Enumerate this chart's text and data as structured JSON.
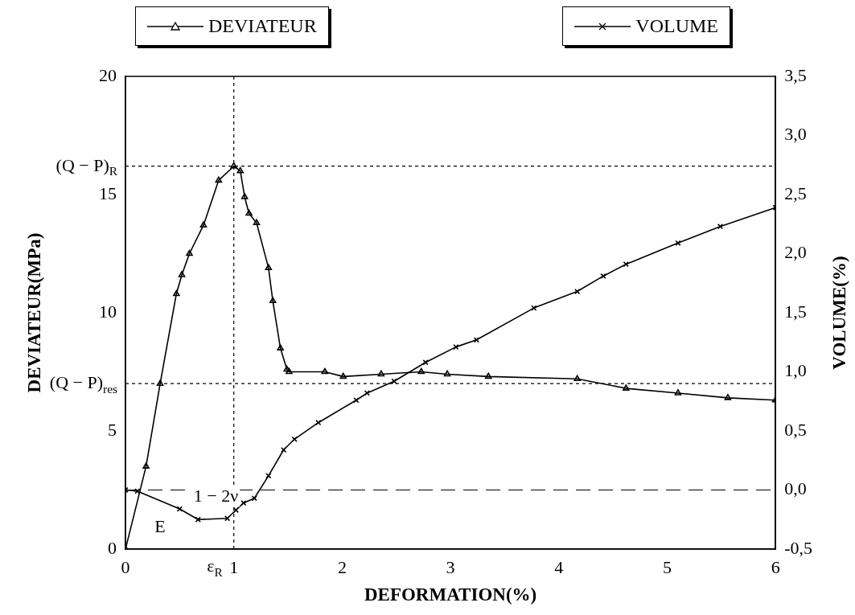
{
  "chart_data": {
    "type": "line",
    "xlabel": "DEFORMATION(%)",
    "ylabel": "DEVIATEUR(MPa)",
    "y2label": "VOLUME(%)",
    "xlim": [
      0,
      6
    ],
    "xticks": [
      0,
      1,
      2,
      3,
      4,
      5,
      6
    ],
    "ylim": [
      0,
      20
    ],
    "yticks": [
      0,
      5,
      10,
      15,
      20
    ],
    "y2lim": [
      -0.5,
      3.5
    ],
    "y2ticks": [
      {
        "value": -0.5,
        "label": "-0,5"
      },
      {
        "value": 0,
        "label": "0,0"
      },
      {
        "value": 0.5,
        "label": "0,5"
      },
      {
        "value": 1,
        "label": "1,0"
      },
      {
        "value": 1.5,
        "label": "1,5"
      },
      {
        "value": 2,
        "label": "2,0"
      },
      {
        "value": 2.5,
        "label": "2,5"
      },
      {
        "value": 3,
        "label": "3,0"
      },
      {
        "value": 3.5,
        "label": "3,5"
      }
    ],
    "grid": false,
    "legend": "top",
    "series": [
      {
        "name": "DEVIATEUR",
        "color": "#000000",
        "marker": "triangle",
        "x": [
          0,
          0.19,
          0.32,
          0.47,
          0.52,
          0.59,
          0.72,
          0.86,
          1.0,
          1.06,
          1.1,
          1.14,
          1.21,
          1.32,
          1.36,
          1.43,
          1.49,
          1.51,
          1.84,
          2.01,
          2.36,
          2.73,
          2.97,
          3.35,
          4.17,
          4.62,
          5.1,
          5.56,
          6.0
        ],
        "values": [
          0,
          3.5,
          7.0,
          10.8,
          11.6,
          12.5,
          13.7,
          15.6,
          16.2,
          16.0,
          14.9,
          14.2,
          13.8,
          11.9,
          10.5,
          8.5,
          7.6,
          7.5,
          7.5,
          7.3,
          7.4,
          7.5,
          7.4,
          7.3,
          7.2,
          6.8,
          6.6,
          6.4,
          6.3
        ]
      },
      {
        "name": "VOLUME",
        "color": "#000000",
        "marker": "cross",
        "axis": "y2",
        "x": [
          0,
          0.11,
          0.5,
          0.67,
          0.94,
          1.02,
          1.09,
          1.19,
          1.32,
          1.46,
          1.56,
          1.78,
          2.13,
          2.23,
          2.48,
          2.77,
          3.05,
          3.24,
          3.77,
          4.17,
          4.41,
          4.62,
          5.1,
          5.49,
          6.0
        ],
        "values": [
          0,
          -0.01,
          -0.16,
          -0.25,
          -0.24,
          -0.17,
          -0.11,
          -0.07,
          0.12,
          0.34,
          0.43,
          0.57,
          0.76,
          0.82,
          0.92,
          1.08,
          1.21,
          1.27,
          1.54,
          1.68,
          1.81,
          1.91,
          2.09,
          2.23,
          2.39
        ]
      }
    ],
    "ref_lines": [
      {
        "axis": "y",
        "value": 16.2,
        "label": "(Q − P)$_{R}$",
        "line_style": "dotted"
      },
      {
        "axis": "y",
        "value": 7,
        "label": "(Q − P)$_{res}$",
        "line_style": "dotted"
      },
      {
        "axis": "x",
        "value": 1,
        "label": "ε$_{R}$",
        "line_style": "dotted"
      },
      {
        "axis": "y2",
        "value": 0,
        "line_style": "dashed"
      }
    ],
    "annotations": [
      "1 − 2ν",
      "E"
    ]
  }
}
